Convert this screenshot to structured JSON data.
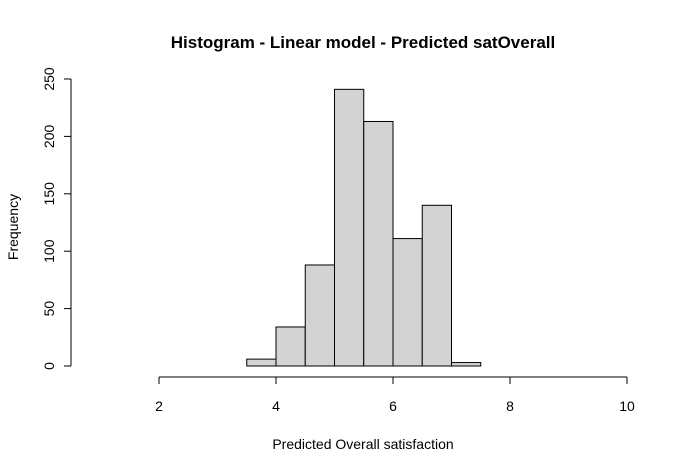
{
  "chart_data": {
    "type": "bar",
    "title": "Histogram - Linear model - Predicted satOverall",
    "xlabel": "Predicted Overall satisfaction",
    "ylabel": "Frequency",
    "xlim": [
      2,
      10
    ],
    "ylim": [
      0,
      250
    ],
    "x_ticks": [
      2,
      4,
      6,
      8,
      10
    ],
    "y_ticks": [
      0,
      50,
      100,
      150,
      200,
      250
    ],
    "bins": [
      {
        "start": 3.5,
        "end": 4.0,
        "count": 6
      },
      {
        "start": 4.0,
        "end": 4.5,
        "count": 34
      },
      {
        "start": 4.5,
        "end": 5.0,
        "count": 88
      },
      {
        "start": 5.0,
        "end": 5.5,
        "count": 241
      },
      {
        "start": 5.5,
        "end": 6.0,
        "count": 213
      },
      {
        "start": 6.0,
        "end": 6.5,
        "count": 111
      },
      {
        "start": 6.5,
        "end": 7.0,
        "count": 140
      },
      {
        "start": 7.0,
        "end": 7.5,
        "count": 3
      }
    ],
    "bar_fill": "#d3d3d3",
    "bar_stroke": "#000000",
    "grid": false
  }
}
